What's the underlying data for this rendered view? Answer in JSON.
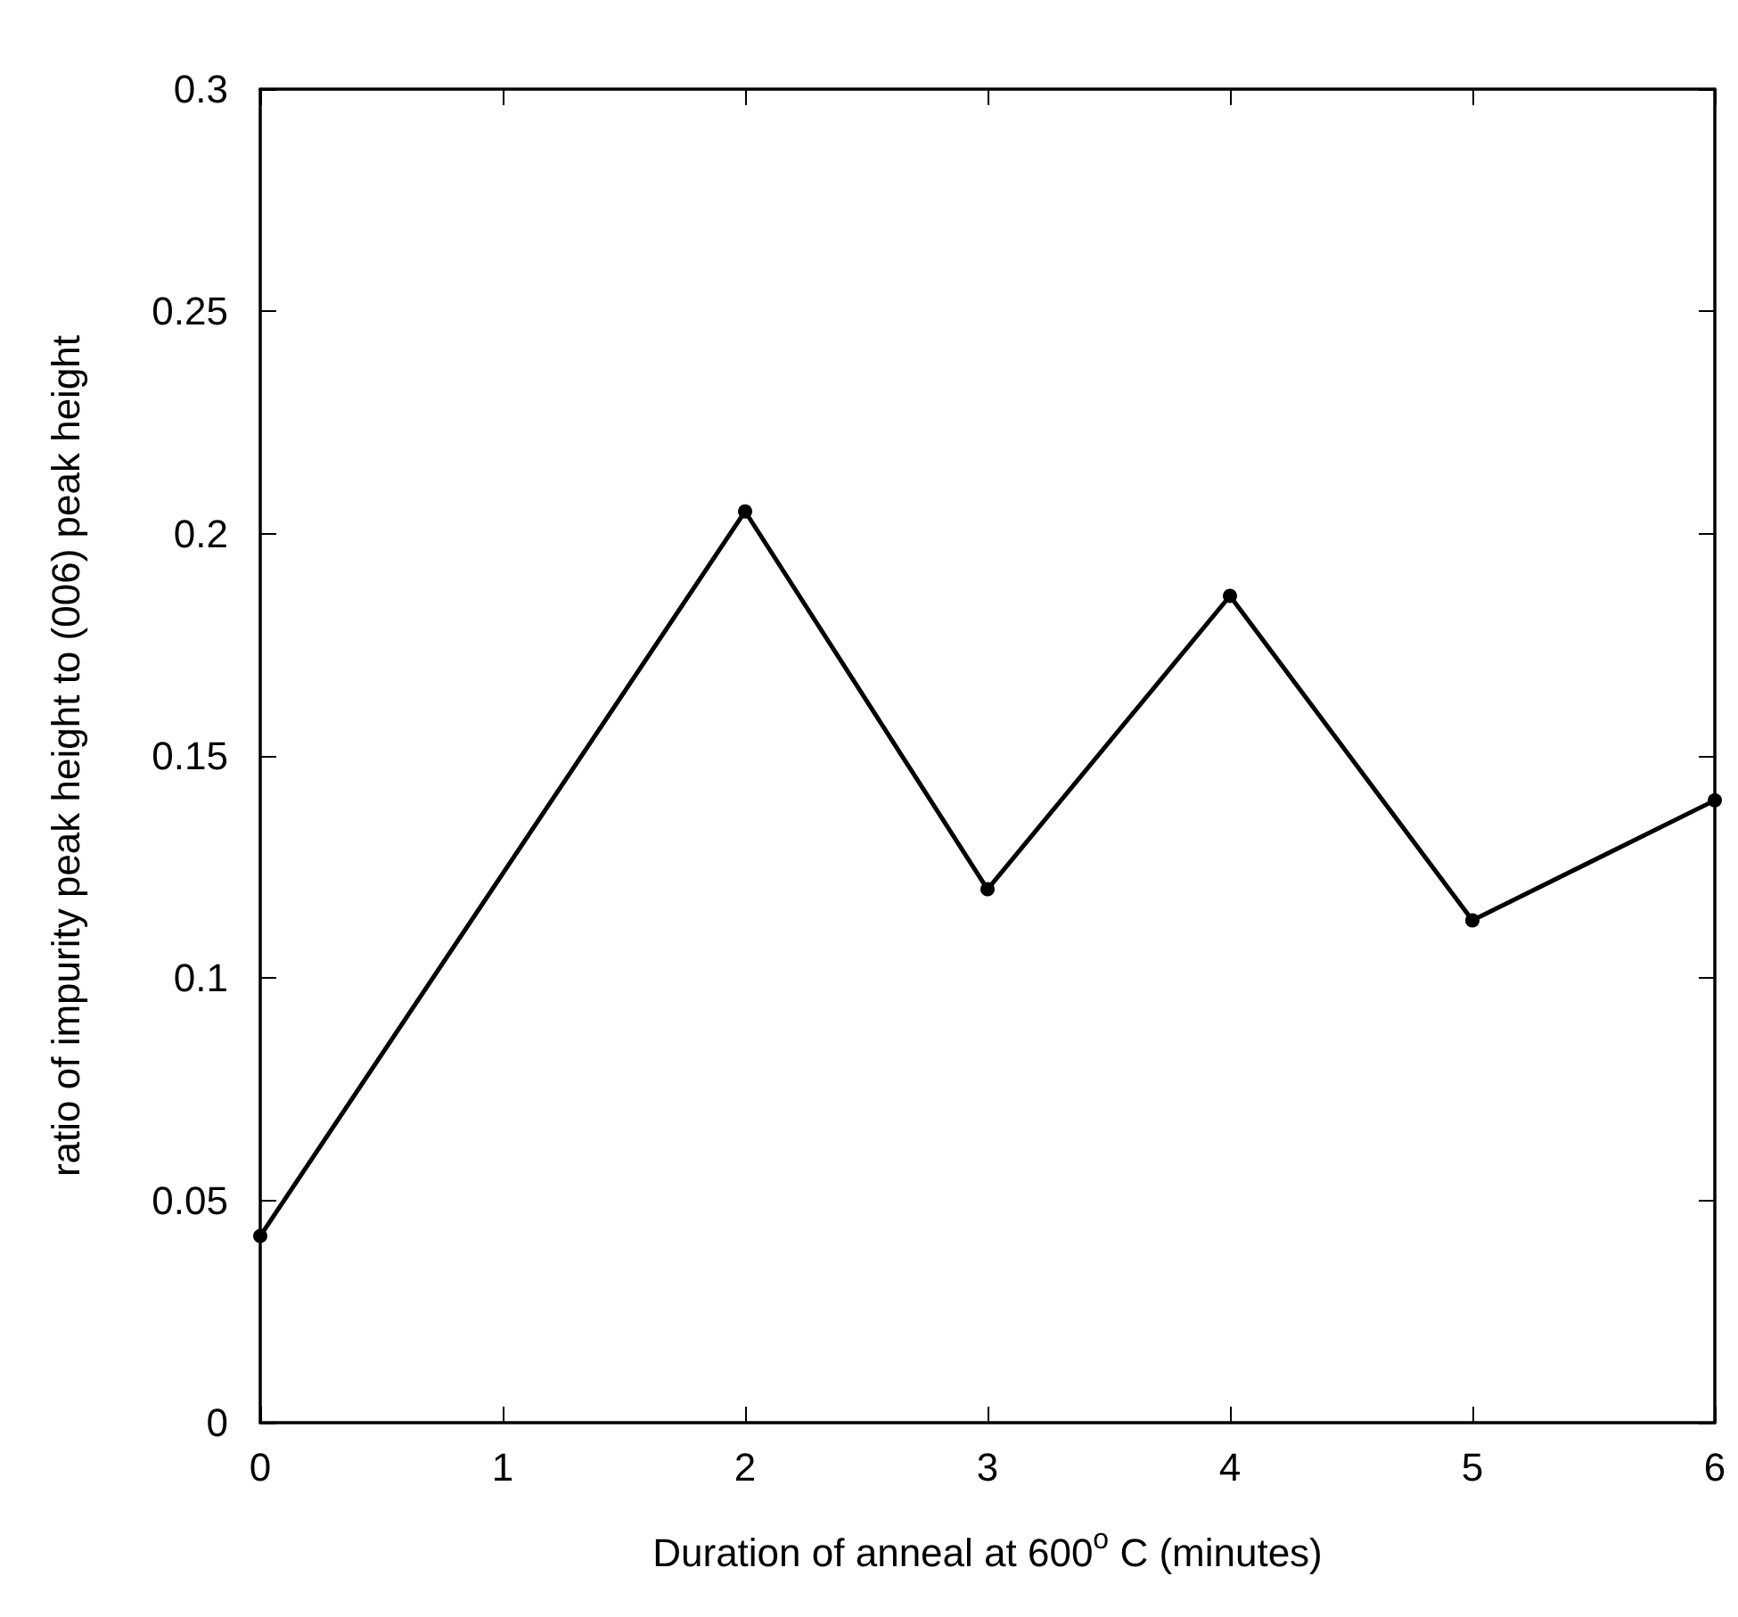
{
  "chart_data": {
    "type": "line",
    "xlabel": "Duration of anneal at 600$^{o}$ C (minutes)",
    "ylabel": "ratio of impurity peak height to (006) peak height",
    "series": [
      {
        "color": "#000000",
        "x": [
          0,
          2,
          3,
          4,
          5,
          6
        ],
        "values": [
          0.042,
          0.205,
          0.12,
          0.186,
          0.113,
          0.14
        ]
      }
    ],
    "xlim": [
      0,
      6
    ],
    "xticks": [
      0,
      1,
      2,
      3,
      4,
      5,
      6
    ],
    "ylim": [
      0,
      0.3
    ],
    "yticks": [
      0,
      0.05,
      0.1,
      0.15,
      0.2,
      0.25,
      0.3
    ],
    "grid": false,
    "marker": "circle",
    "line_style": "solid"
  }
}
